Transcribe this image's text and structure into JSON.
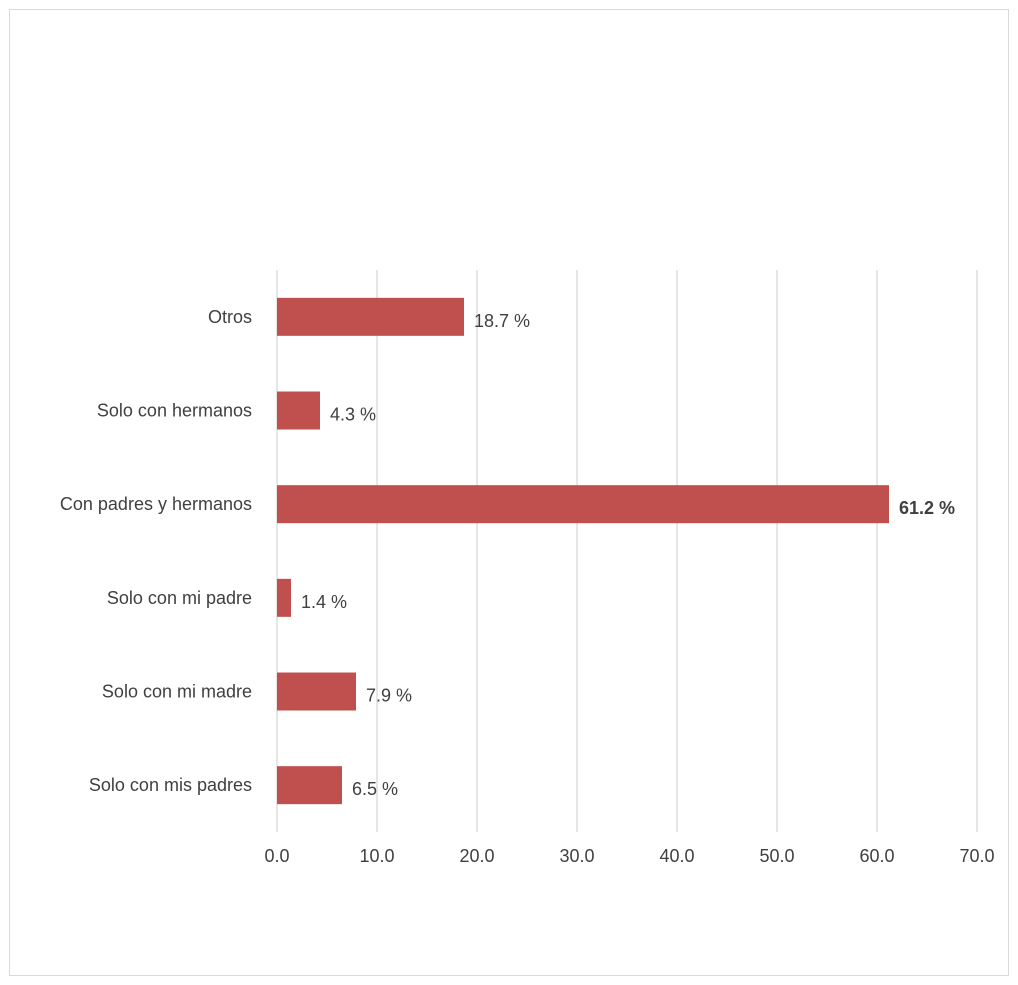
{
  "chart_data": {
    "type": "bar",
    "orientation": "horizontal",
    "categories": [
      "Otros",
      "Solo con hermanos",
      "Con padres y hermanos",
      "Solo con mi padre",
      "Solo con mi madre",
      "Solo con mis padres"
    ],
    "values": [
      18.7,
      4.3,
      61.2,
      1.4,
      7.9,
      6.5
    ],
    "data_labels": [
      "18.7 %",
      "4.3 %",
      "61.2 %",
      "1.4 %",
      "7.9 %",
      "6.5 %"
    ],
    "emphasized_label": "61.2 %",
    "x_ticks": [
      "0.0",
      "10.0",
      "20.0",
      "30.0",
      "40.0",
      "50.0",
      "60.0",
      "70.0"
    ],
    "xlim": [
      0,
      70
    ],
    "grid": "vertical",
    "legend": "none",
    "colors": {
      "bar": "#c0504d",
      "grid": "#d9d9d9",
      "text": "#404040"
    }
  }
}
